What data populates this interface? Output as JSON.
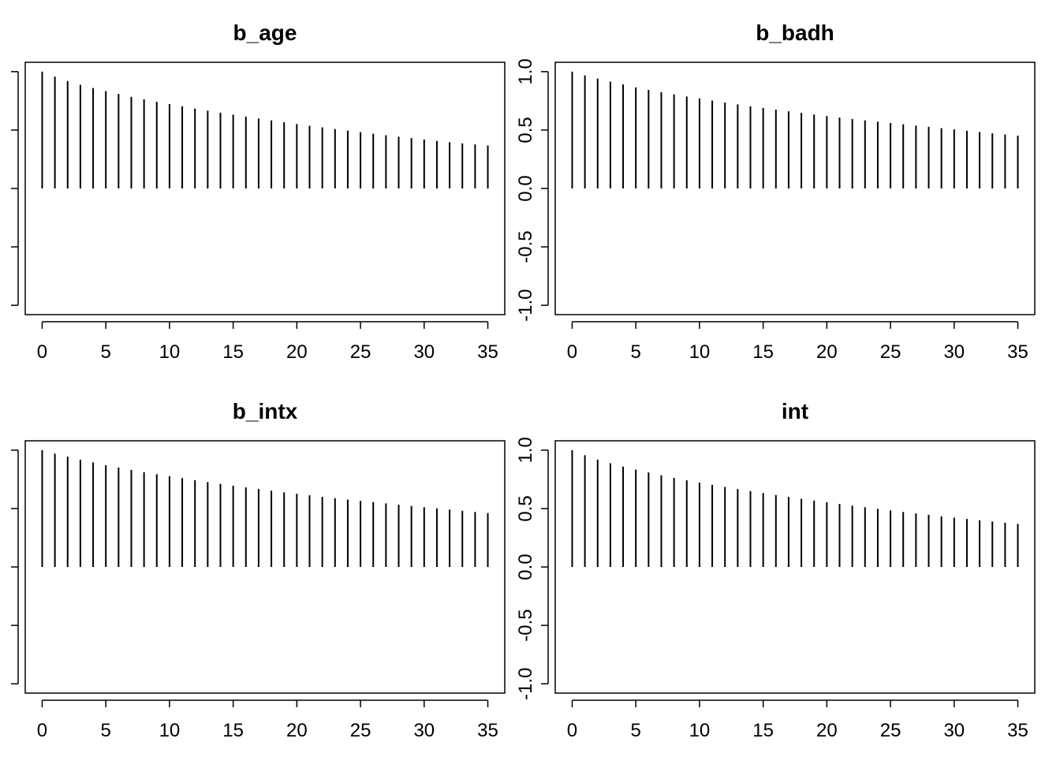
{
  "chart_data": [
    {
      "type": "bar",
      "title": "b_age",
      "xlabel": "",
      "ylabel": "",
      "xlim": [
        -1.33,
        36.33
      ],
      "ylim": [
        -1.08,
        1.08
      ],
      "x_ticks": [
        0,
        5,
        10,
        15,
        20,
        25,
        30,
        35
      ],
      "y_ticks": [
        -1.0,
        -0.5,
        0.0,
        0.5,
        1.0
      ],
      "y_tick_labels_shown": false,
      "lags": [
        0,
        1,
        2,
        3,
        4,
        5,
        6,
        7,
        8,
        9,
        10,
        11,
        12,
        13,
        14,
        15,
        16,
        17,
        18,
        19,
        20,
        21,
        22,
        23,
        24,
        25,
        26,
        27,
        28,
        29,
        30,
        31,
        32,
        33,
        34,
        35
      ],
      "values": [
        1.0,
        0.958,
        0.92,
        0.888,
        0.86,
        0.834,
        0.809,
        0.785,
        0.763,
        0.742,
        0.722,
        0.703,
        0.684,
        0.666,
        0.649,
        0.632,
        0.615,
        0.598,
        0.582,
        0.567,
        0.552,
        0.537,
        0.523,
        0.509,
        0.495,
        0.482,
        0.469,
        0.456,
        0.443,
        0.431,
        0.419,
        0.407,
        0.396,
        0.386,
        0.377,
        0.368
      ]
    },
    {
      "type": "bar",
      "title": "b_badh",
      "xlabel": "",
      "ylabel": "",
      "xlim": [
        -1.33,
        36.33
      ],
      "ylim": [
        -1.08,
        1.08
      ],
      "x_ticks": [
        0,
        5,
        10,
        15,
        20,
        25,
        30,
        35
      ],
      "y_ticks": [
        -1.0,
        -0.5,
        0.0,
        0.5,
        1.0
      ],
      "y_tick_labels": [
        "-1.0",
        "-0.5",
        "0.0",
        "0.5",
        "1.0"
      ],
      "y_tick_labels_shown": true,
      "lags": [
        0,
        1,
        2,
        3,
        4,
        5,
        6,
        7,
        8,
        9,
        10,
        11,
        12,
        13,
        14,
        15,
        16,
        17,
        18,
        19,
        20,
        21,
        22,
        23,
        24,
        25,
        26,
        27,
        28,
        29,
        30,
        31,
        32,
        33,
        34,
        35
      ],
      "values": [
        1.0,
        0.968,
        0.941,
        0.915,
        0.89,
        0.866,
        0.844,
        0.824,
        0.805,
        0.787,
        0.77,
        0.753,
        0.736,
        0.72,
        0.704,
        0.689,
        0.675,
        0.661,
        0.647,
        0.633,
        0.62,
        0.607,
        0.595,
        0.583,
        0.571,
        0.56,
        0.549,
        0.538,
        0.527,
        0.516,
        0.505,
        0.494,
        0.483,
        0.472,
        0.462,
        0.452
      ]
    },
    {
      "type": "bar",
      "title": "b_intx",
      "xlabel": "",
      "ylabel": "",
      "xlim": [
        -1.33,
        36.33
      ],
      "ylim": [
        -1.08,
        1.08
      ],
      "x_ticks": [
        0,
        5,
        10,
        15,
        20,
        25,
        30,
        35
      ],
      "y_ticks": [
        -1.0,
        -0.5,
        0.0,
        0.5,
        1.0
      ],
      "y_tick_labels_shown": false,
      "lags": [
        0,
        1,
        2,
        3,
        4,
        5,
        6,
        7,
        8,
        9,
        10,
        11,
        12,
        13,
        14,
        15,
        16,
        17,
        18,
        19,
        20,
        21,
        22,
        23,
        24,
        25,
        26,
        27,
        28,
        29,
        30,
        31,
        32,
        33,
        34,
        35
      ],
      "values": [
        1.0,
        0.97,
        0.944,
        0.919,
        0.895,
        0.872,
        0.851,
        0.831,
        0.812,
        0.794,
        0.777,
        0.76,
        0.743,
        0.727,
        0.711,
        0.696,
        0.681,
        0.667,
        0.653,
        0.639,
        0.626,
        0.613,
        0.601,
        0.589,
        0.577,
        0.566,
        0.555,
        0.544,
        0.533,
        0.522,
        0.511,
        0.501,
        0.491,
        0.481,
        0.471,
        0.461
      ]
    },
    {
      "type": "bar",
      "title": "int",
      "xlabel": "",
      "ylabel": "",
      "xlim": [
        -1.33,
        36.33
      ],
      "ylim": [
        -1.08,
        1.08
      ],
      "x_ticks": [
        0,
        5,
        10,
        15,
        20,
        25,
        30,
        35
      ],
      "y_ticks": [
        -1.0,
        -0.5,
        0.0,
        0.5,
        1.0
      ],
      "y_tick_labels": [
        "-1.0",
        "-0.5",
        "0.0",
        "0.5",
        "1.0"
      ],
      "y_tick_labels_shown": true,
      "lags": [
        0,
        1,
        2,
        3,
        4,
        5,
        6,
        7,
        8,
        9,
        10,
        11,
        12,
        13,
        14,
        15,
        16,
        17,
        18,
        19,
        20,
        21,
        22,
        23,
        24,
        25,
        26,
        27,
        28,
        29,
        30,
        31,
        32,
        33,
        34,
        35
      ],
      "values": [
        1.0,
        0.957,
        0.92,
        0.888,
        0.86,
        0.834,
        0.809,
        0.785,
        0.763,
        0.742,
        0.722,
        0.703,
        0.685,
        0.667,
        0.65,
        0.633,
        0.616,
        0.6,
        0.584,
        0.569,
        0.554,
        0.539,
        0.525,
        0.511,
        0.497,
        0.484,
        0.471,
        0.458,
        0.446,
        0.434,
        0.422,
        0.411,
        0.4,
        0.389,
        0.379,
        0.369
      ]
    }
  ]
}
